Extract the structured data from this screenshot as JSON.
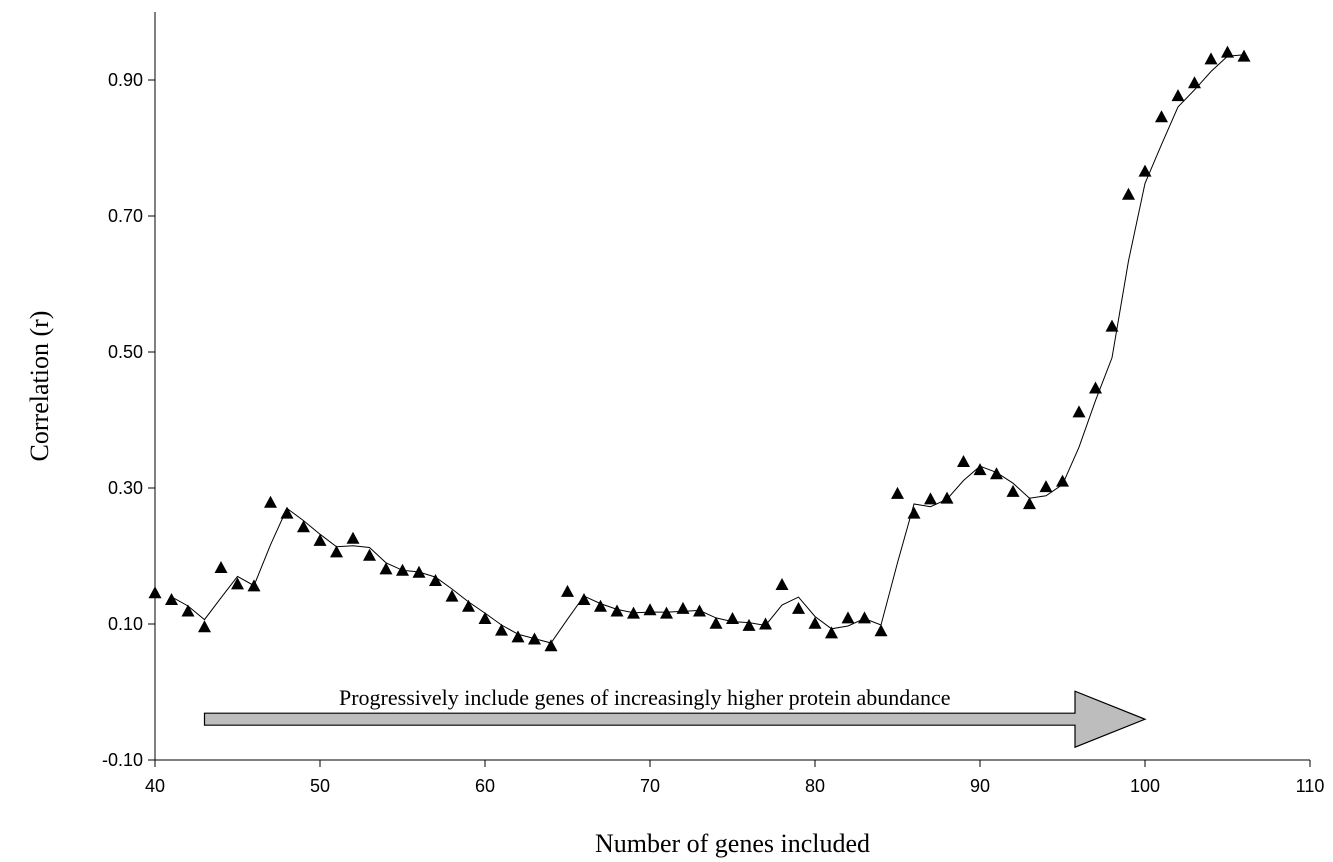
{
  "chart_data": {
    "type": "scatter",
    "title": "",
    "xlabel": "Number of genes included",
    "ylabel": "Correlation (r)",
    "xlim": [
      40,
      110
    ],
    "ylim": [
      -0.1,
      1.0
    ],
    "x_ticks": [
      40,
      50,
      60,
      70,
      80,
      90,
      100,
      110
    ],
    "x_tick_labels": [
      "40",
      "50",
      "60",
      "70",
      "80",
      "90",
      "100",
      "110"
    ],
    "y_ticks": [
      -0.1,
      0.1,
      0.3,
      0.5,
      0.7,
      0.9
    ],
    "y_tick_labels": [
      "-0.10",
      "0.10",
      "0.30",
      "0.50",
      "0.70",
      "0.90"
    ],
    "grid": false,
    "legend": "none",
    "marker": "triangle",
    "has_trendline": true,
    "annotation": "Progressively include genes of increasingly higher protein abundance",
    "arrow": {
      "from_x": 43,
      "to_x": 100,
      "y": -0.04,
      "color": "#bdbdbd"
    },
    "series": [
      {
        "x": [
          40,
          41,
          42,
          43,
          44,
          45,
          46,
          47,
          48,
          49,
          50,
          51,
          52,
          53,
          54,
          55,
          56,
          57,
          58,
          59,
          60,
          61,
          62,
          63,
          64,
          65,
          66,
          67,
          68,
          69,
          70,
          71,
          72,
          73,
          74,
          75,
          76,
          77,
          78,
          79,
          80,
          81,
          82,
          83,
          84,
          85,
          86,
          87,
          88,
          89,
          90,
          91,
          92,
          93,
          94,
          95,
          96,
          97,
          98,
          99,
          100,
          101,
          102,
          103,
          104,
          105,
          106
        ],
        "values": [
          0.145,
          0.135,
          0.118,
          0.095,
          0.182,
          0.158,
          0.155,
          0.278,
          0.262,
          0.242,
          0.222,
          0.205,
          0.225,
          0.2,
          0.18,
          0.178,
          0.175,
          0.163,
          0.14,
          0.125,
          0.107,
          0.09,
          0.08,
          0.077,
          0.067,
          0.147,
          0.135,
          0.125,
          0.118,
          0.115,
          0.12,
          0.115,
          0.122,
          0.118,
          0.1,
          0.107,
          0.097,
          0.099,
          0.157,
          0.122,
          0.1,
          0.086,
          0.108,
          0.108,
          0.089,
          0.291,
          0.262,
          0.283,
          0.284,
          0.338,
          0.326,
          0.32,
          0.294,
          0.276,
          0.301,
          0.309,
          0.411,
          0.446,
          0.537,
          0.731,
          0.765,
          0.845,
          0.876,
          0.895,
          0.93,
          0.94,
          0.934
        ]
      }
    ]
  }
}
